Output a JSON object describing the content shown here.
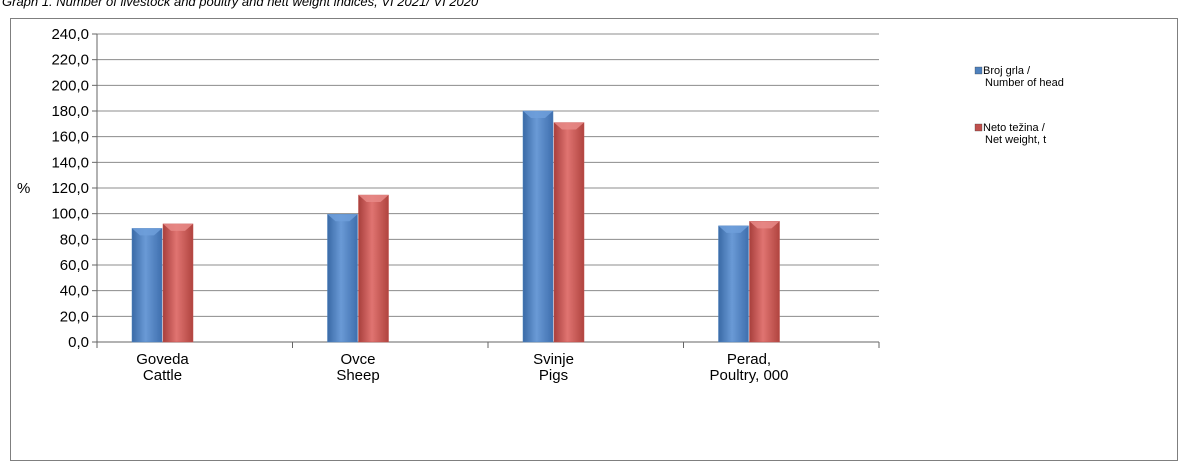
{
  "caption": "Graph 1. Number of livestock and poultry and nett weight indices, VI 2021/ VI 2020",
  "chart_data": {
    "type": "bar",
    "title": "Graph 1. Number of livestock and poultry and nett weight indices, VI 2021/ VI 2020",
    "ylabel": "%",
    "xlabel": "",
    "ylim": [
      0,
      240
    ],
    "ytick_step": 20,
    "ytick_labels": [
      "0,0",
      "20,0",
      "40,0",
      "60,0",
      "80,0",
      "100,0",
      "120,0",
      "140,0",
      "160,0",
      "180,0",
      "200,0",
      "220,0",
      "240,0"
    ],
    "grid": true,
    "legend_position": "right",
    "categories": [
      [
        "Goveda",
        "Cattle"
      ],
      [
        "Ovce",
        "Sheep"
      ],
      [
        "Svinje",
        "Pigs"
      ],
      [
        "Perad,",
        "Poultry, 000"
      ]
    ],
    "series": [
      {
        "name": [
          "Broj grla /",
          "Number of head"
        ],
        "color": "#4f81bd",
        "values": [
          88.5,
          99.5,
          180.0,
          90.5
        ]
      },
      {
        "name": [
          "Neto težina /",
          "Net weight, t"
        ],
        "color": "#c0504d",
        "values": [
          92.0,
          114.5,
          171.0,
          94.0
        ]
      }
    ]
  }
}
